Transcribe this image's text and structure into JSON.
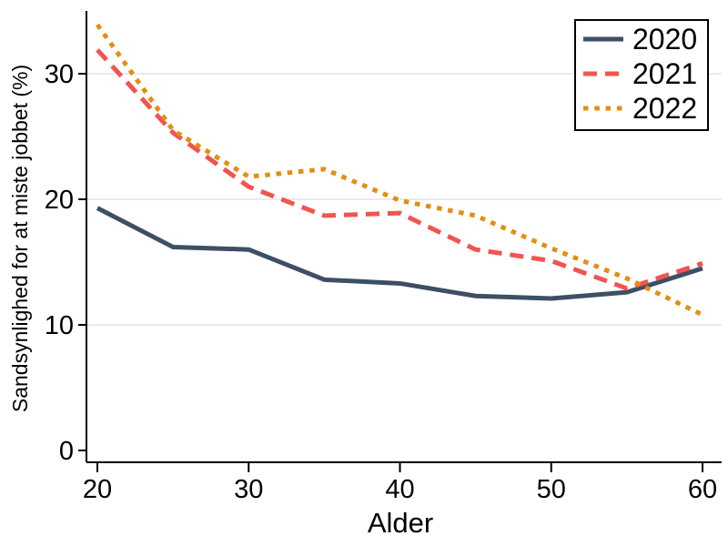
{
  "chart_data": {
    "type": "line",
    "x": [
      20,
      25,
      30,
      35,
      40,
      45,
      50,
      55,
      60
    ],
    "series": [
      {
        "name": "2020",
        "style": "solid",
        "color": "#3d4f63",
        "values": [
          19.3,
          16.2,
          16.0,
          13.6,
          13.3,
          12.3,
          12.1,
          12.6,
          14.5
        ]
      },
      {
        "name": "2021",
        "style": "dashed",
        "color": "#f2544f",
        "values": [
          31.9,
          25.3,
          21.0,
          18.7,
          18.9,
          16.0,
          15.1,
          12.9,
          14.9
        ]
      },
      {
        "name": "2022",
        "style": "dotted",
        "color": "#e28f12",
        "values": [
          33.9,
          25.5,
          21.8,
          22.4,
          19.9,
          18.7,
          16.1,
          13.7,
          10.8
        ]
      }
    ],
    "xlabel": "Alder",
    "ylabel": "Sandsynlighed for at miste jobbet (%)",
    "xticks": [
      20,
      30,
      40,
      50,
      60
    ],
    "yticks": [
      0,
      10,
      20,
      30
    ],
    "xlim": [
      20,
      60
    ],
    "ylim": [
      0,
      35
    ],
    "grid": "horizontal-only",
    "grid_color": "#e3e3e3",
    "axis_color": "#000000",
    "background_color": "#ffffff",
    "legend": {
      "position": "top-right",
      "border_color": "#000000",
      "fill_color": "#ffffff",
      "entries": [
        "2020",
        "2021",
        "2022"
      ]
    }
  }
}
